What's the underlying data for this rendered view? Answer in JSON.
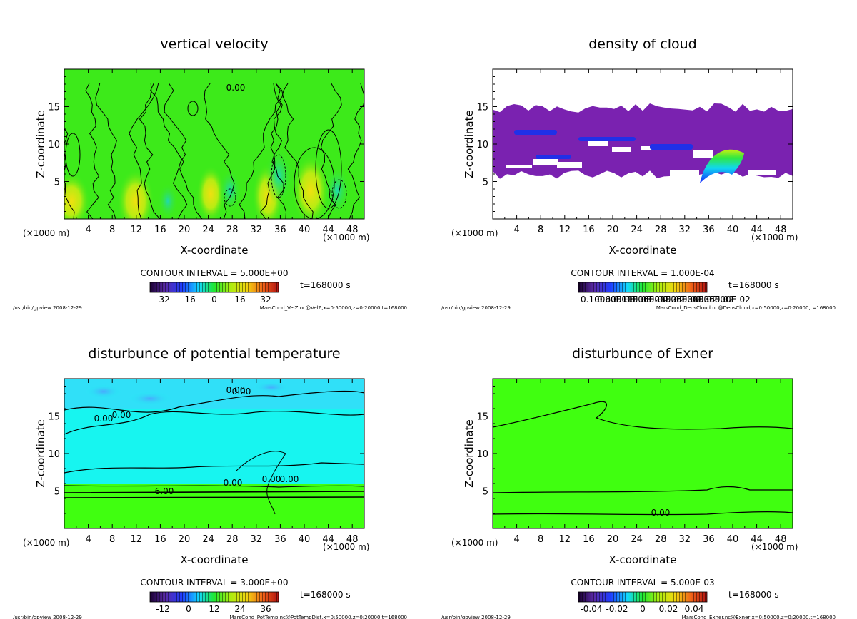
{
  "common": {
    "x_axis_label": "X-coordinate",
    "z_axis_label": "Z-coordinate",
    "x_unit": "(×1000 m)",
    "time_label": "t=168000 s",
    "footer_left": "/usr/bin/gpview  2008-12-29"
  },
  "chart_data": [
    {
      "type": "heatmap",
      "title": "vertical velocity",
      "xlabel": "X-coordinate",
      "ylabel": "Z-coordinate",
      "xlim": [
        0,
        50
      ],
      "ylim": [
        0,
        20
      ],
      "xticks": [
        4,
        8,
        12,
        16,
        20,
        24,
        28,
        32,
        36,
        40,
        44,
        48
      ],
      "yticks": [
        5,
        10,
        15
      ],
      "contour_interval": "CONTOUR INTERVAL = 5.000E+00",
      "colorbar_ticks": [
        "-32",
        "-16",
        "0",
        "16",
        "32"
      ],
      "time": "t=168000 s",
      "footer_right": "MarsCond_VelZ.nc@VelZ,x=0:50000,z=0:20000,t=168000",
      "contour_labels": [
        "0.00"
      ],
      "background_color": "#3dea1a"
    },
    {
      "type": "heatmap",
      "title": "density of cloud",
      "xlabel": "X-coordinate",
      "ylabel": "Z-coordinate",
      "xlim": [
        0,
        50
      ],
      "ylim": [
        0,
        20
      ],
      "xticks": [
        4,
        8,
        12,
        16,
        20,
        24,
        28,
        32,
        36,
        40,
        44,
        48
      ],
      "yticks": [
        5,
        10,
        15
      ],
      "contour_interval": "CONTOUR INTERVAL = 1.000E-04",
      "colorbar_ticks": [
        "0.10000E-03",
        "0.60000E-03",
        "0.11000E-02",
        "0.16000E-02",
        "0.21000E-02",
        "0.26000E-02",
        "0.31000E-02",
        "0.36000E-02"
      ],
      "time": "t=168000 s",
      "footer_right": "MarsCond_DensCloud.nc@DensCloud,x=0:50000,z=0:20000,t=168000",
      "contour_labels": [],
      "background_color": "#ffffff"
    },
    {
      "type": "heatmap",
      "title": "disturbunce of potential temperature",
      "xlabel": "X-coordinate",
      "ylabel": "Z-coordinate",
      "xlim": [
        0,
        50
      ],
      "ylim": [
        0,
        20
      ],
      "xticks": [
        4,
        8,
        12,
        16,
        20,
        24,
        28,
        32,
        36,
        40,
        44,
        48
      ],
      "yticks": [
        5,
        10,
        15
      ],
      "contour_interval": "CONTOUR INTERVAL = 3.000E+00",
      "colorbar_ticks": [
        "-12",
        "0",
        "12",
        "24",
        "36"
      ],
      "time": "t=168000 s",
      "footer_right": "MarsCond_PotTemp.nc@PotTempDist,x=0:50000,z=0:20000,t=168000",
      "contour_labels": [
        "0.00",
        "0.00",
        "0.00",
        "0.00",
        "0.00",
        "0.00",
        "0.00",
        "6.00"
      ],
      "background_color": "#17f5f0"
    },
    {
      "type": "heatmap",
      "title": "disturbunce of Exner",
      "xlabel": "X-coordinate",
      "ylabel": "Z-coordinate",
      "xlim": [
        0,
        50
      ],
      "ylim": [
        0,
        20
      ],
      "xticks": [
        4,
        8,
        12,
        16,
        20,
        24,
        28,
        32,
        36,
        40,
        44,
        48
      ],
      "yticks": [
        5,
        10,
        15
      ],
      "contour_interval": "CONTOUR INTERVAL = 5.000E-03",
      "colorbar_ticks": [
        "-0.04",
        "-0.02",
        "0",
        "0.02",
        "0.04"
      ],
      "time": "t=168000 s",
      "footer_right": "MarsCond_Exner.nc@Exner,x=0:50000,z=0:20000,t=168000",
      "contour_labels": [
        "0.00"
      ],
      "background_color": "#40ff10"
    }
  ]
}
